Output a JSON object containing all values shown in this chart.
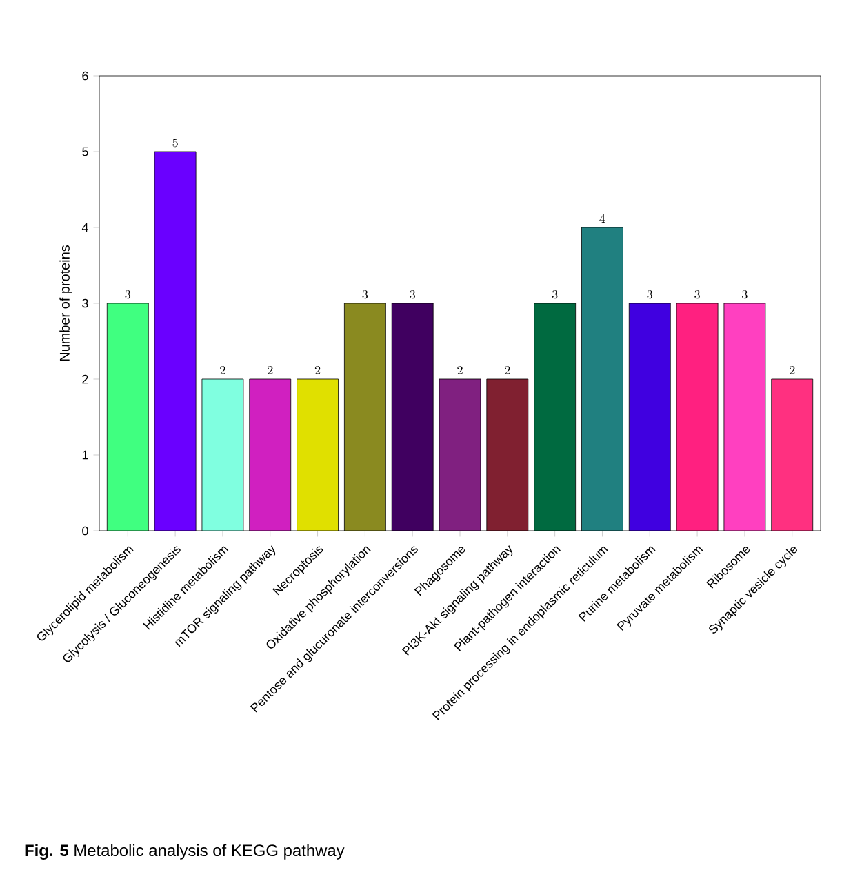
{
  "chart_data": {
    "type": "bar",
    "ylabel": "Number of proteins",
    "categories": [
      "Glycerolipid metabolism",
      "Glycolysis / Gluconeogenesis",
      "Histidine metabolism",
      "mTOR signaling pathway",
      "Necroptosis",
      "Oxidative phosphorylation",
      "Pentose and glucuronate interconversions",
      "Phagosome",
      "PI3K-Akt signaling pathway",
      "Plant-pathogen interaction",
      "Protein processing in endoplasmic reticulum",
      "Purine metabolism",
      "Pyruvate metabolism",
      "Ribosome",
      "Synaptic vesicle cycle"
    ],
    "values": [
      3,
      5,
      2,
      2,
      2,
      3,
      3,
      2,
      2,
      3,
      4,
      3,
      3,
      3,
      2
    ],
    "colors": [
      "#40ff80",
      "#6a00ff",
      "#80ffe0",
      "#d020c0",
      "#e0e000",
      "#8a8a20",
      "#400060",
      "#802080",
      "#802030",
      "#006a40",
      "#208080",
      "#4000e0",
      "#ff2080",
      "#ff40c0",
      "#ff3080"
    ],
    "ylim": [
      0,
      6
    ],
    "yticks": [
      0,
      1,
      2,
      3,
      4,
      5,
      6
    ],
    "data_labels": true,
    "annotations": [
      "**Fig. 5** Metabolic analysis of KEGG pathway"
    ]
  }
}
